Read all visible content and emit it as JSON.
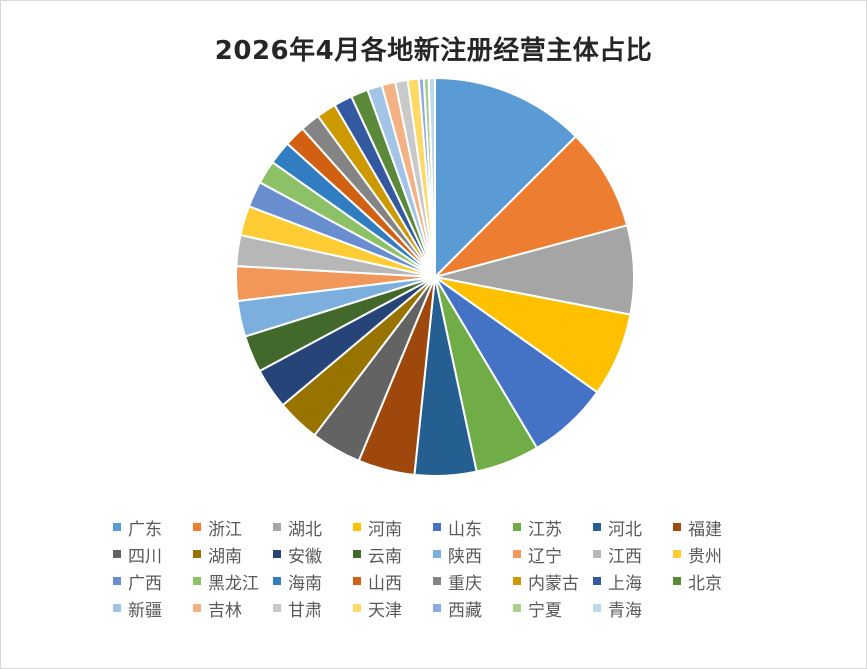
{
  "chart_data": {
    "type": "pie",
    "title": "2026年4月各地新注册经营主体占比",
    "legend_position": "bottom",
    "slices": [
      {
        "label": "广东",
        "value": 12.5,
        "color": "#5B9BD5"
      },
      {
        "label": "浙江",
        "value": 8.3,
        "color": "#ED7D31"
      },
      {
        "label": "湖北",
        "value": 7.2,
        "color": "#A5A5A5"
      },
      {
        "label": "河南",
        "value": 6.8,
        "color": "#FFC000"
      },
      {
        "label": "山东",
        "value": 6.6,
        "color": "#4472C4"
      },
      {
        "label": "江苏",
        "value": 5.2,
        "color": "#70AD47"
      },
      {
        "label": "河北",
        "value": 5.0,
        "color": "#255E91"
      },
      {
        "label": "福建",
        "value": 4.6,
        "color": "#9E480E"
      },
      {
        "label": "四川",
        "value": 4.1,
        "color": "#636363"
      },
      {
        "label": "湖南",
        "value": 3.5,
        "color": "#997300"
      },
      {
        "label": "安徽",
        "value": 3.3,
        "color": "#264478"
      },
      {
        "label": "云南",
        "value": 3.0,
        "color": "#43682B"
      },
      {
        "label": "陕西",
        "value": 2.9,
        "color": "#7CAFDD"
      },
      {
        "label": "辽宁",
        "value": 2.8,
        "color": "#F1975A"
      },
      {
        "label": "江西",
        "value": 2.5,
        "color": "#B7B7B7"
      },
      {
        "label": "贵州",
        "value": 2.4,
        "color": "#FFCD33"
      },
      {
        "label": "广西",
        "value": 2.1,
        "color": "#698ED0"
      },
      {
        "label": "黑龙江",
        "value": 1.9,
        "color": "#8CC168"
      },
      {
        "label": "海南",
        "value": 1.9,
        "color": "#327DC2"
      },
      {
        "label": "山西",
        "value": 1.7,
        "color": "#D26012"
      },
      {
        "label": "重庆",
        "value": 1.6,
        "color": "#848484"
      },
      {
        "label": "内蒙古",
        "value": 1.6,
        "color": "#CC9A00"
      },
      {
        "label": "上海",
        "value": 1.5,
        "color": "#335AA1"
      },
      {
        "label": "北京",
        "value": 1.4,
        "color": "#5A8A39"
      },
      {
        "label": "新疆",
        "value": 1.2,
        "color": "#A2C4E6"
      },
      {
        "label": "吉林",
        "value": 1.1,
        "color": "#F4B183"
      },
      {
        "label": "甘肃",
        "value": 1.0,
        "color": "#C9C9C9"
      },
      {
        "label": "天津",
        "value": 0.9,
        "color": "#FFD966"
      },
      {
        "label": "西藏",
        "value": 0.4,
        "color": "#8FAADC"
      },
      {
        "label": "宁夏",
        "value": 0.4,
        "color": "#A9D18E"
      },
      {
        "label": "青海",
        "value": 0.5,
        "color": "#BDD7EE"
      }
    ]
  }
}
